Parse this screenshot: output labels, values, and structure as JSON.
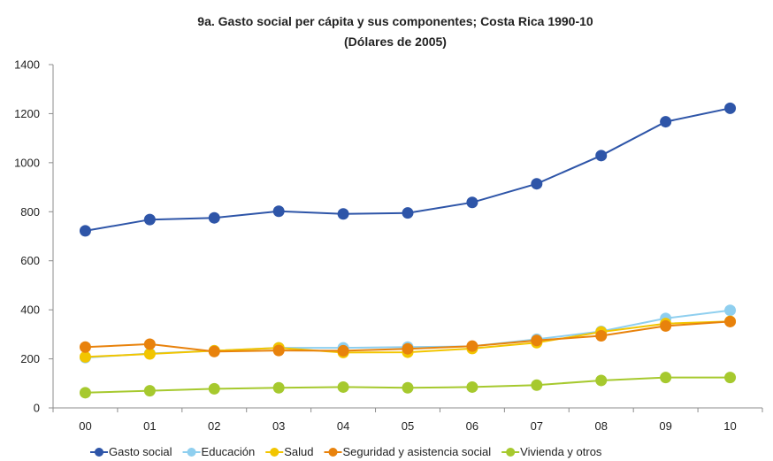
{
  "chart_data": {
    "type": "line",
    "title": "9a. Gasto social per cápita y sus componentes; Costa Rica 1990-10",
    "subtitle": "(Dólares de 2005)",
    "xlabel": "",
    "ylabel": "",
    "categories": [
      "00",
      "01",
      "02",
      "03",
      "04",
      "05",
      "06",
      "07",
      "08",
      "09",
      "10"
    ],
    "ylim": [
      0,
      1400
    ],
    "yticks": [
      0,
      200,
      400,
      600,
      800,
      1000,
      1200,
      1400
    ],
    "grid": false,
    "legend_position": "bottom",
    "series": [
      {
        "name": "Gasto social",
        "color": "#2E55A8",
        "values": [
          722,
          768,
          775,
          802,
          791,
          795,
          838,
          914,
          1029,
          1167,
          1222
        ]
      },
      {
        "name": "Educación",
        "color": "#8FCFEF",
        "values": [
          205,
          222,
          233,
          245,
          245,
          248,
          251,
          280,
          312,
          365,
          398
        ]
      },
      {
        "name": "Salud",
        "color": "#F2C500",
        "values": [
          208,
          220,
          233,
          245,
          226,
          227,
          242,
          266,
          310,
          344,
          353
        ]
      },
      {
        "name": "Seguridad y asistencia social",
        "color": "#E8820C",
        "values": [
          248,
          260,
          230,
          234,
          233,
          241,
          252,
          275,
          294,
          334,
          352
        ]
      },
      {
        "name": "Vivienda y otros",
        "color": "#A6C92E",
        "values": [
          62,
          70,
          78,
          82,
          85,
          82,
          85,
          93,
          112,
          124,
          124
        ]
      }
    ]
  }
}
